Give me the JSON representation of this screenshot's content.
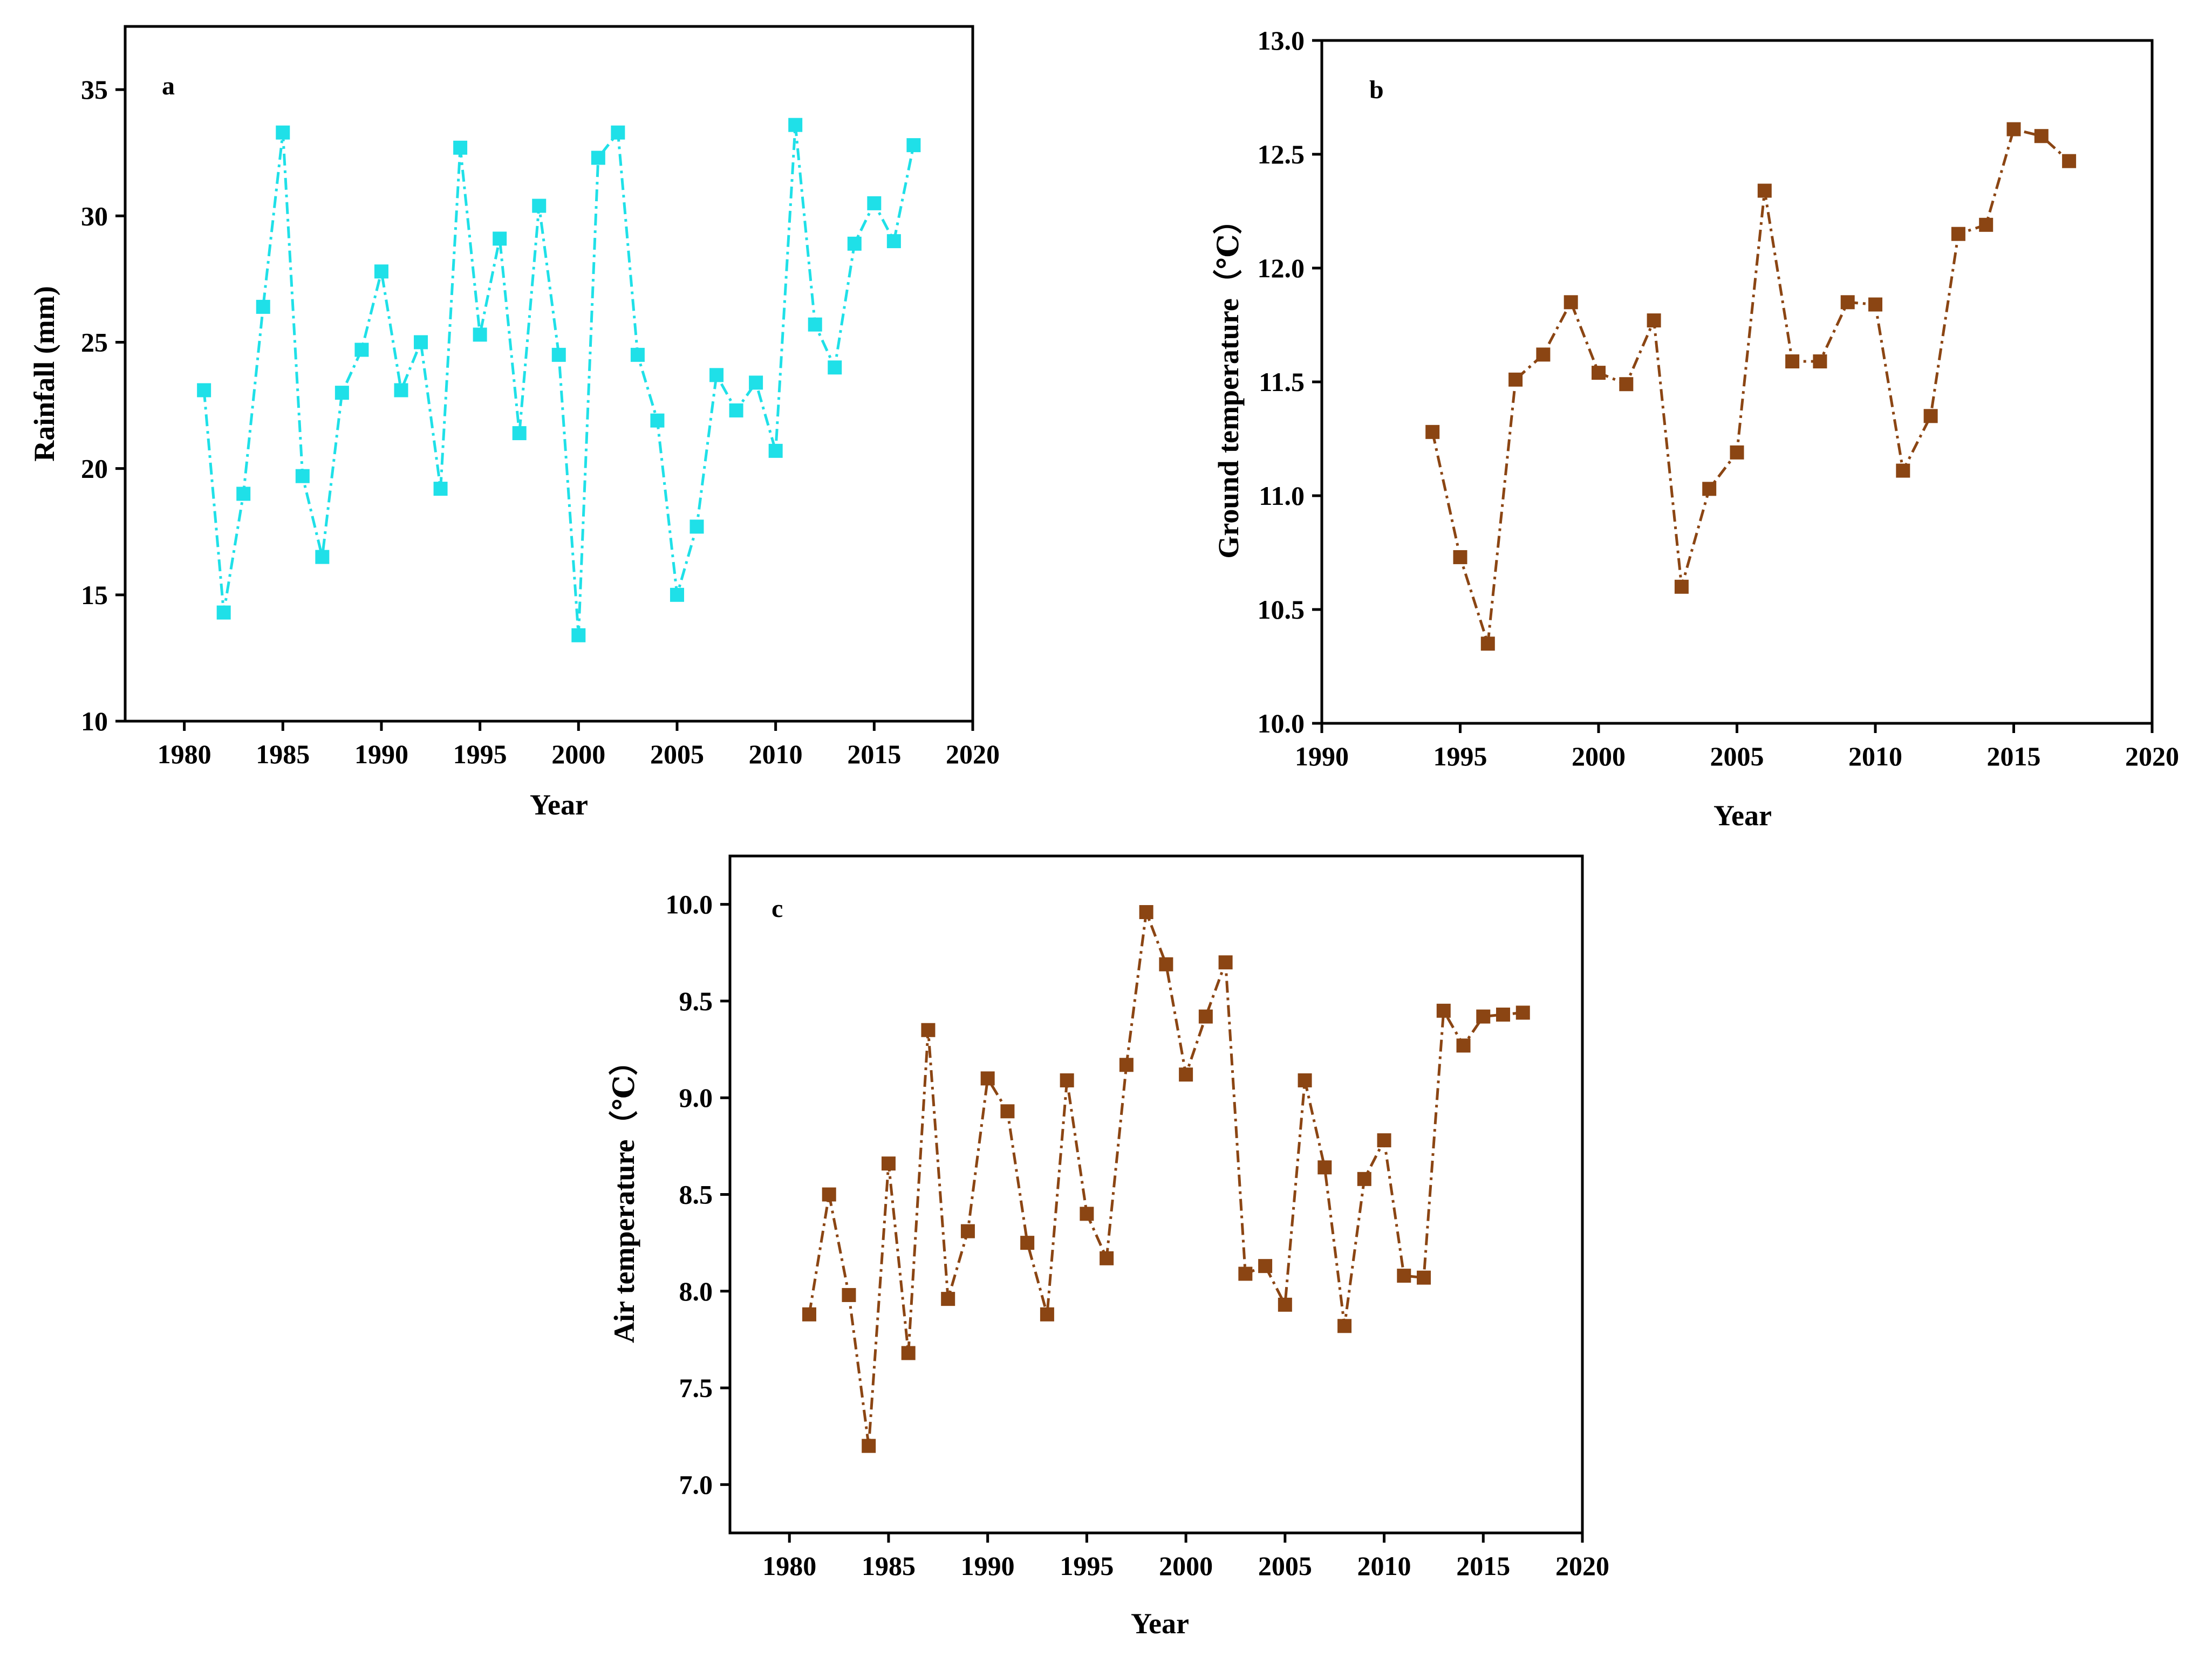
{
  "chart_data": [
    {
      "id": "a",
      "type": "line",
      "panel_label": "a",
      "xlabel": "Year",
      "ylabel": "Rainfall (mm)",
      "xlim": [
        1977,
        2020
      ],
      "ylim": [
        10,
        37.5
      ],
      "xticks": [
        1980,
        1985,
        1990,
        1995,
        2000,
        2005,
        2010,
        2015,
        2020
      ],
      "yticks": [
        10,
        15,
        20,
        25,
        30,
        35
      ],
      "ytick_decimals": 0,
      "color": "#1fe0e8",
      "marker": "square",
      "line_style": "dash-dot",
      "x": [
        1981,
        1982,
        1983,
        1984,
        1985,
        1986,
        1987,
        1988,
        1989,
        1990,
        1991,
        1992,
        1993,
        1994,
        1995,
        1996,
        1997,
        1998,
        1999,
        2000,
        2001,
        2002,
        2003,
        2004,
        2005,
        2006,
        2007,
        2008,
        2009,
        2010,
        2011,
        2012,
        2013,
        2014,
        2015,
        2016,
        2017
      ],
      "y": [
        23.1,
        14.3,
        19.0,
        26.4,
        33.3,
        19.7,
        16.5,
        23.0,
        24.7,
        27.8,
        23.1,
        25.0,
        19.2,
        32.7,
        25.3,
        29.1,
        21.4,
        30.4,
        24.5,
        13.4,
        32.3,
        33.3,
        24.5,
        21.9,
        15.0,
        17.7,
        23.7,
        22.3,
        23.4,
        20.7,
        33.6,
        25.7,
        24.0,
        28.9,
        30.5,
        29.0,
        32.8
      ]
    },
    {
      "id": "b",
      "type": "line",
      "panel_label": "b",
      "xlabel": "Year",
      "ylabel": "Ground temperature（℃）",
      "xlim": [
        1990,
        2020
      ],
      "ylim": [
        10.0,
        13.0
      ],
      "xticks": [
        1990,
        1995,
        2000,
        2005,
        2010,
        2015,
        2020
      ],
      "yticks": [
        10.0,
        10.5,
        11.0,
        11.5,
        12.0,
        12.5,
        13.0
      ],
      "ytick_decimals": 1,
      "color": "#8b4513",
      "marker": "square",
      "line_style": "dash-dot",
      "x": [
        1994,
        1995,
        1996,
        1997,
        1998,
        1999,
        2000,
        2001,
        2002,
        2003,
        2004,
        2005,
        2006,
        2007,
        2008,
        2009,
        2010,
        2011,
        2012,
        2013,
        2014,
        2015,
        2016,
        2017
      ],
      "y": [
        11.28,
        10.73,
        10.35,
        11.51,
        11.62,
        11.85,
        11.54,
        11.49,
        11.77,
        10.6,
        11.03,
        11.19,
        12.34,
        11.59,
        11.59,
        11.85,
        11.84,
        11.11,
        11.35,
        12.15,
        12.19,
        12.61,
        12.58,
        12.47
      ]
    },
    {
      "id": "c",
      "type": "line",
      "panel_label": "c",
      "xlabel": "Year",
      "ylabel": "Air temperature（℃）",
      "xlim": [
        1977,
        2020
      ],
      "ylim": [
        6.75,
        10.25
      ],
      "xticks": [
        1980,
        1985,
        1990,
        1995,
        2000,
        2005,
        2010,
        2015,
        2020
      ],
      "yticks": [
        7.0,
        7.5,
        8.0,
        8.5,
        9.0,
        9.5,
        10.0
      ],
      "ytick_decimals": 1,
      "color": "#8b4513",
      "marker": "square",
      "line_style": "dash-dot",
      "x": [
        1981,
        1982,
        1983,
        1984,
        1985,
        1986,
        1987,
        1988,
        1989,
        1990,
        1991,
        1992,
        1993,
        1994,
        1995,
        1996,
        1997,
        1998,
        1999,
        2000,
        2001,
        2002,
        2003,
        2004,
        2005,
        2006,
        2007,
        2008,
        2009,
        2010,
        2011,
        2012,
        2013,
        2014,
        2015,
        2016,
        2017
      ],
      "y": [
        7.88,
        8.5,
        7.98,
        7.2,
        8.66,
        7.68,
        9.35,
        7.96,
        8.31,
        9.1,
        8.93,
        8.25,
        7.88,
        9.09,
        8.4,
        8.17,
        9.17,
        9.96,
        9.69,
        9.12,
        9.42,
        9.7,
        8.09,
        8.13,
        7.93,
        9.09,
        8.64,
        7.82,
        8.58,
        8.78,
        8.08,
        8.07,
        9.45,
        9.27,
        9.42,
        9.43,
        9.44
      ]
    }
  ]
}
